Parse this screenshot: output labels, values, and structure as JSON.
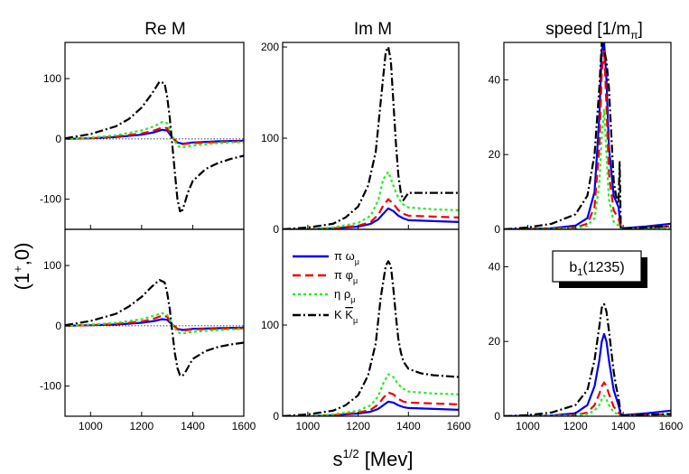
{
  "figure": {
    "col_titles": [
      "Re M",
      "Im M",
      "speed [1/m_π]"
    ],
    "ylabel": "(1⁺,0)",
    "xlabel": "s^1/2 [Mev]",
    "annotation": "b1(1235)"
  },
  "chart_data": {
    "type": "line",
    "xlim": [
      900,
      1600
    ],
    "xticks": [
      1000,
      1200,
      1400,
      1600
    ],
    "grid": false,
    "legend": {
      "placement": "top-left of bottom-middle panel",
      "entries": [
        {
          "label": "π ωμ",
          "color": "#0000ee",
          "style": "solid"
        },
        {
          "label": "π φμ",
          "color": "#ee0000",
          "style": "dashed"
        },
        {
          "label": "η ρμ",
          "color": "#22ee22",
          "style": "dotted"
        },
        {
          "label": "K K̅μ",
          "color": "#000000",
          "style": "dashdot"
        }
      ]
    },
    "panels": [
      {
        "id": "re-top",
        "ylim": [
          -150,
          160
        ],
        "yticks": [
          -100,
          0,
          100
        ],
        "zero_line": true,
        "series": [
          {
            "x": [
              900,
              1000,
              1100,
              1200,
              1250,
              1280,
              1300,
              1320,
              1340,
              1360,
              1400,
              1500,
              1600
            ],
            "values": [
              0,
              1,
              3,
              7,
              11,
              15,
              14,
              2,
              -6,
              -8,
              -6,
              -4,
              -3
            ]
          },
          {
            "x": [
              900,
              1000,
              1100,
              1200,
              1250,
              1280,
              1300,
              1320,
              1340,
              1360,
              1400,
              1500,
              1600
            ],
            "values": [
              0,
              1,
              4,
              9,
              14,
              19,
              18,
              3,
              -7,
              -9,
              -7,
              -5,
              -4
            ]
          },
          {
            "x": [
              900,
              1000,
              1100,
              1200,
              1250,
              1280,
              1300,
              1320,
              1340,
              1360,
              1400,
              1500,
              1600
            ],
            "values": [
              0,
              2,
              6,
              14,
              21,
              28,
              26,
              5,
              -12,
              -14,
              -11,
              -7,
              -5
            ]
          },
          {
            "x": [
              900,
              1000,
              1100,
              1150,
              1200,
              1240,
              1270,
              1290,
              1300,
              1310,
              1320,
              1330,
              1340,
              1350,
              1360,
              1370,
              1380,
              1400,
              1450,
              1500,
              1550,
              1600
            ],
            "values": [
              1,
              8,
              21,
              33,
              52,
              75,
              95,
              92,
              70,
              35,
              -10,
              -55,
              -100,
              -120,
              -118,
              -105,
              -90,
              -70,
              -50,
              -40,
              -33,
              -28
            ]
          }
        ]
      },
      {
        "id": "im-top",
        "ylim": [
          0,
          205
        ],
        "yticks": [
          0,
          100,
          200
        ],
        "zero_line": false,
        "series": [
          {
            "x": [
              900,
              1000,
              1100,
              1200,
              1250,
              1280,
              1300,
              1320,
              1340,
              1360,
              1380,
              1400,
              1500,
              1600
            ],
            "values": [
              0,
              0,
              1,
              3,
              6,
              11,
              17,
              23,
              20,
              15,
              12,
              10,
              9,
              8
            ]
          },
          {
            "x": [
              900,
              1000,
              1100,
              1200,
              1250,
              1280,
              1300,
              1320,
              1340,
              1360,
              1380,
              1400,
              1500,
              1600
            ],
            "values": [
              0,
              0,
              1,
              4,
              8,
              16,
              26,
              33,
              28,
              21,
              17,
              15,
              14,
              13
            ]
          },
          {
            "x": [
              900,
              1000,
              1100,
              1200,
              1250,
              1280,
              1300,
              1320,
              1340,
              1360,
              1380,
              1400,
              1500,
              1600
            ],
            "values": [
              0,
              0,
              2,
              7,
              15,
              32,
              55,
              63,
              48,
              34,
              27,
              24,
              22,
              21
            ]
          },
          {
            "x": [
              900,
              1000,
              1100,
              1150,
              1200,
              1240,
              1270,
              1290,
              1310,
              1320,
              1330,
              1340,
              1350,
              1360,
              1370,
              1380,
              1390,
              1400,
              1450,
              1500,
              1600
            ],
            "values": [
              0,
              2,
              6,
              13,
              25,
              48,
              85,
              140,
              195,
              200,
              185,
              140,
              95,
              60,
              40,
              32,
              36,
              40,
              40,
              40,
              40
            ]
          }
        ]
      },
      {
        "id": "speed-top",
        "ylim": [
          0,
          50
        ],
        "yticks": [
          0,
          20,
          40
        ],
        "zero_line": false,
        "series": [
          {
            "x": [
              900,
              1100,
              1200,
              1250,
              1280,
              1300,
              1310,
              1320,
              1330,
              1340,
              1360,
              1380,
              1390,
              1400,
              1500,
              1600
            ],
            "values": [
              0,
              0.3,
              1,
              3,
              10,
              30,
              48,
              50,
              40,
              22,
              9,
              6,
              0.5,
              0.3,
              0.8,
              1.5
            ]
          },
          {
            "x": [
              900,
              1100,
              1200,
              1250,
              1280,
              1300,
              1310,
              1320,
              1330,
              1340,
              1360,
              1380,
              1390,
              1400,
              1500,
              1600
            ],
            "values": [
              0,
              0.2,
              0.5,
              1.5,
              6,
              22,
              42,
              48,
              33,
              15,
              5,
              3,
              0.3,
              0.2,
              0.4,
              0.8
            ]
          },
          {
            "x": [
              900,
              1100,
              1200,
              1250,
              1280,
              1300,
              1310,
              1320,
              1330,
              1340,
              1360,
              1380,
              1390,
              1400,
              1500,
              1600
            ],
            "values": [
              0,
              0.1,
              0.3,
              1,
              3,
              12,
              25,
              32,
              20,
              8,
              2,
              1,
              0.1,
              0.1,
              0.2,
              0.3
            ]
          },
          {
            "x": [
              900,
              1000,
              1100,
              1200,
              1250,
              1280,
              1300,
              1310,
              1320,
              1330,
              1340,
              1360,
              1370,
              1380,
              1385,
              1390,
              1400,
              1500,
              1600
            ],
            "values": [
              0,
              0.5,
              1.5,
              4,
              9,
              20,
              38,
              50,
              48,
              45,
              38,
              13,
              9,
              7,
              18,
              0.5,
              0.3,
              0.5,
              0.8
            ]
          }
        ]
      },
      {
        "id": "re-bottom",
        "ylim": [
          -150,
          160
        ],
        "yticks": [
          -100,
          0,
          100
        ],
        "zero_line": true,
        "series": [
          {
            "x": [
              900,
              1000,
              1100,
              1200,
              1250,
              1280,
              1300,
              1320,
              1340,
              1360,
              1400,
              1500,
              1600
            ],
            "values": [
              0,
              1,
              2,
              5,
              8,
              11,
              10,
              2,
              -5,
              -7,
              -5,
              -4,
              -3
            ]
          },
          {
            "x": [
              900,
              1000,
              1100,
              1200,
              1250,
              1280,
              1300,
              1320,
              1340,
              1360,
              1400,
              1500,
              1600
            ],
            "values": [
              0,
              1,
              3,
              7,
              12,
              17,
              15,
              3,
              -6,
              -8,
              -6,
              -5,
              -4
            ]
          },
          {
            "x": [
              900,
              1000,
              1100,
              1200,
              1250,
              1280,
              1300,
              1320,
              1340,
              1360,
              1400,
              1500,
              1600
            ],
            "values": [
              0,
              2,
              5,
              11,
              17,
              21,
              18,
              3,
              -11,
              -13,
              -10,
              -7,
              -5
            ]
          },
          {
            "x": [
              900,
              1000,
              1100,
              1150,
              1200,
              1240,
              1270,
              1290,
              1300,
              1310,
              1320,
              1330,
              1340,
              1350,
              1360,
              1370,
              1380,
              1400,
              1450,
              1500,
              1550,
              1600
            ],
            "values": [
              1,
              8,
              20,
              32,
              48,
              65,
              76,
              72,
              55,
              28,
              -10,
              -45,
              -70,
              -82,
              -83,
              -78,
              -70,
              -55,
              -42,
              -35,
              -31,
              -28
            ]
          }
        ]
      },
      {
        "id": "im-bottom",
        "ylim": [
          0,
          205
        ],
        "yticks": [
          0,
          100
        ],
        "zero_line": false,
        "series": [
          {
            "x": [
              900,
              1000,
              1100,
              1200,
              1250,
              1280,
              1300,
              1320,
              1340,
              1360,
              1380,
              1400,
              1500,
              1600
            ],
            "values": [
              0,
              0,
              1,
              3,
              5,
              8,
              12,
              16,
              15,
              12,
              10,
              9,
              8,
              7
            ]
          },
          {
            "x": [
              900,
              1000,
              1100,
              1200,
              1250,
              1280,
              1300,
              1320,
              1340,
              1360,
              1380,
              1400,
              1500,
              1600
            ],
            "values": [
              0,
              0,
              1,
              4,
              7,
              13,
              20,
              26,
              24,
              19,
              16,
              15,
              14,
              13
            ]
          },
          {
            "x": [
              900,
              1000,
              1100,
              1200,
              1250,
              1280,
              1300,
              1320,
              1340,
              1360,
              1380,
              1400,
              1500,
              1600
            ],
            "values": [
              0,
              0,
              2,
              6,
              12,
              22,
              36,
              46,
              43,
              35,
              30,
              27,
              25,
              24
            ]
          },
          {
            "x": [
              900,
              1000,
              1100,
              1150,
              1200,
              1240,
              1270,
              1290,
              1310,
              1320,
              1330,
              1340,
              1350,
              1360,
              1370,
              1380,
              1400,
              1450,
              1500,
              1600
            ],
            "values": [
              0,
              2,
              6,
              12,
              23,
              45,
              80,
              130,
              165,
              170,
              165,
              140,
              110,
              85,
              70,
              60,
              52,
              47,
              45,
              43
            ]
          }
        ]
      },
      {
        "id": "speed-bottom",
        "ylim": [
          0,
          50
        ],
        "yticks": [
          0,
          20,
          40
        ],
        "zero_line": false,
        "series": [
          {
            "x": [
              900,
              1100,
              1200,
              1250,
              1280,
              1300,
              1310,
              1320,
              1330,
              1340,
              1360,
              1380,
              1390,
              1400,
              1500,
              1600
            ],
            "values": [
              0,
              0.2,
              0.8,
              3,
              8,
              15,
              20,
              22,
              20,
              15,
              7,
              3,
              0.5,
              0.3,
              0.8,
              1.5
            ]
          },
          {
            "x": [
              900,
              1100,
              1200,
              1250,
              1280,
              1300,
              1310,
              1320,
              1330,
              1340,
              1360,
              1380,
              1390,
              1400,
              1500,
              1600
            ],
            "values": [
              0,
              0.1,
              0.3,
              1,
              3,
              6,
              8,
              9,
              8,
              6,
              2.5,
              1,
              0.2,
              0.1,
              0.3,
              0.6
            ]
          },
          {
            "x": [
              900,
              1100,
              1200,
              1250,
              1280,
              1300,
              1310,
              1320,
              1330,
              1340,
              1360,
              1380,
              1390,
              1400,
              1500,
              1600
            ],
            "values": [
              0,
              0.1,
              0.2,
              0.6,
              1.5,
              3,
              4.5,
              5.5,
              4.5,
              3,
              1,
              0.5,
              0.1,
              0.1,
              0.2,
              0.3
            ]
          },
          {
            "x": [
              900,
              1000,
              1100,
              1200,
              1250,
              1280,
              1300,
              1310,
              1320,
              1330,
              1340,
              1360,
              1370,
              1380,
              1390,
              1400,
              1500,
              1600
            ],
            "values": [
              0,
              0.3,
              1,
              3,
              7,
              15,
              24,
              29,
              30,
              28,
              23,
              12,
              8,
              5,
              0.5,
              0.2,
              0.4,
              0.6
            ]
          }
        ]
      }
    ]
  }
}
